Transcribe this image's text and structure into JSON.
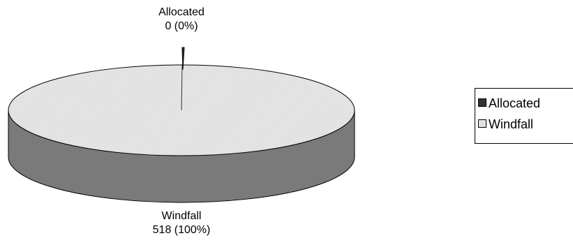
{
  "chart_data": {
    "type": "pie",
    "style": "3d",
    "categories": [
      "Allocated",
      "Windfall"
    ],
    "values": [
      0,
      518
    ],
    "percentages": [
      "0%",
      "100%"
    ],
    "data_labels": [
      {
        "name": "Allocated",
        "value_text": "0  (0%)"
      },
      {
        "name": "Windfall",
        "value_text": "518  (100%)"
      }
    ],
    "legend": {
      "placement": "right",
      "entries": [
        {
          "label": "Allocated",
          "color": "#333333"
        },
        {
          "label": "Windfall",
          "color": "#e3e3e3"
        }
      ]
    },
    "colors": {
      "windfall_top": "#e3e3e3",
      "windfall_side": "#7a7a7a",
      "allocated": "#333333"
    }
  }
}
